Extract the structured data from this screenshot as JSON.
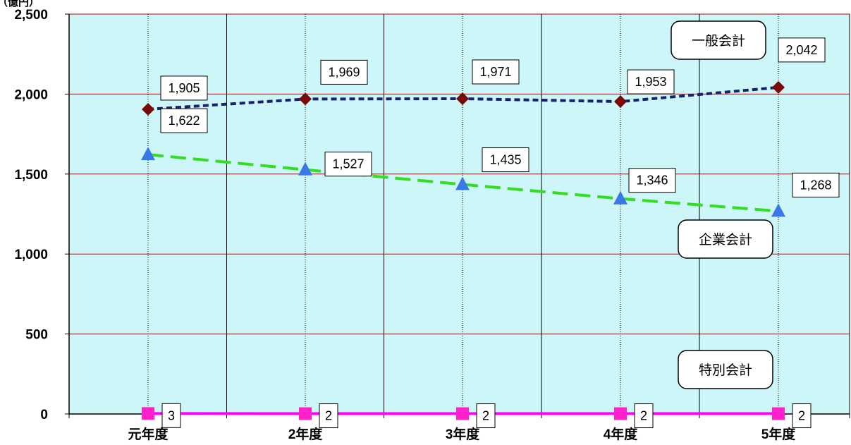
{
  "chart_data": {
    "type": "line",
    "unit_label": "（億円）",
    "categories": [
      "元年度",
      "2年度",
      "3年度",
      "4年度",
      "5年度"
    ],
    "ylim": [
      0,
      2500
    ],
    "yticks": [
      0,
      500,
      1000,
      1500,
      2000,
      2500
    ],
    "ytick_labels": [
      "0",
      "500",
      "1,000",
      "1,500",
      "2,000",
      "2,500"
    ],
    "grid": true,
    "series": [
      {
        "name": "一般会計",
        "values": [
          1905,
          1969,
          1971,
          1953,
          2042
        ],
        "labels": [
          "1,905",
          "1,969",
          "1,971",
          "1,953",
          "2,042"
        ],
        "line_color": "#1a1f6e",
        "marker": "diamond",
        "marker_color": "#7a0a0a"
      },
      {
        "name": "企業会計",
        "values": [
          1622,
          1527,
          1435,
          1346,
          1268
        ],
        "labels": [
          "1,622",
          "1,527",
          "1,435",
          "1,346",
          "1,268"
        ],
        "line_color": "#33dd22",
        "marker": "triangle",
        "marker_color": "#3a78e8"
      },
      {
        "name": "特別会計",
        "values": [
          3,
          2,
          2,
          2,
          2
        ],
        "labels": [
          "3",
          "2",
          "2",
          "2",
          "2"
        ],
        "line_color": "#ff00ff",
        "marker": "square",
        "marker_color": "#ff22cc"
      }
    ],
    "colors": {
      "plot_bg": "#ccf6f8",
      "grid": "#c00000"
    }
  }
}
